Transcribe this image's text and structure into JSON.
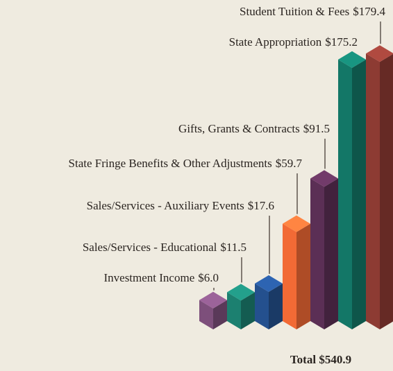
{
  "chart_data": {
    "type": "bar3d",
    "categories": [
      "Investment Income",
      "Sales/Services - Educational",
      "Sales/Services - Auxiliary Events",
      "State Fringe Benefits & Other Adjustments",
      "Gifts, Grants & Contracts",
      "State Appropriation",
      "Student Tuition & Fees"
    ],
    "values": [
      6.0,
      11.5,
      17.6,
      59.7,
      91.5,
      175.2,
      179.4
    ],
    "value_labels": [
      "$6.0",
      "$11.5",
      "$17.6",
      "$59.7",
      "$91.5",
      "$175.2",
      "$179.4"
    ],
    "colors": [
      "#7d4f7b",
      "#1c8070",
      "#24508e",
      "#f26a35",
      "#5b2f55",
      "#137767",
      "#8d3b33"
    ],
    "annotation": "Total $540.9"
  }
}
